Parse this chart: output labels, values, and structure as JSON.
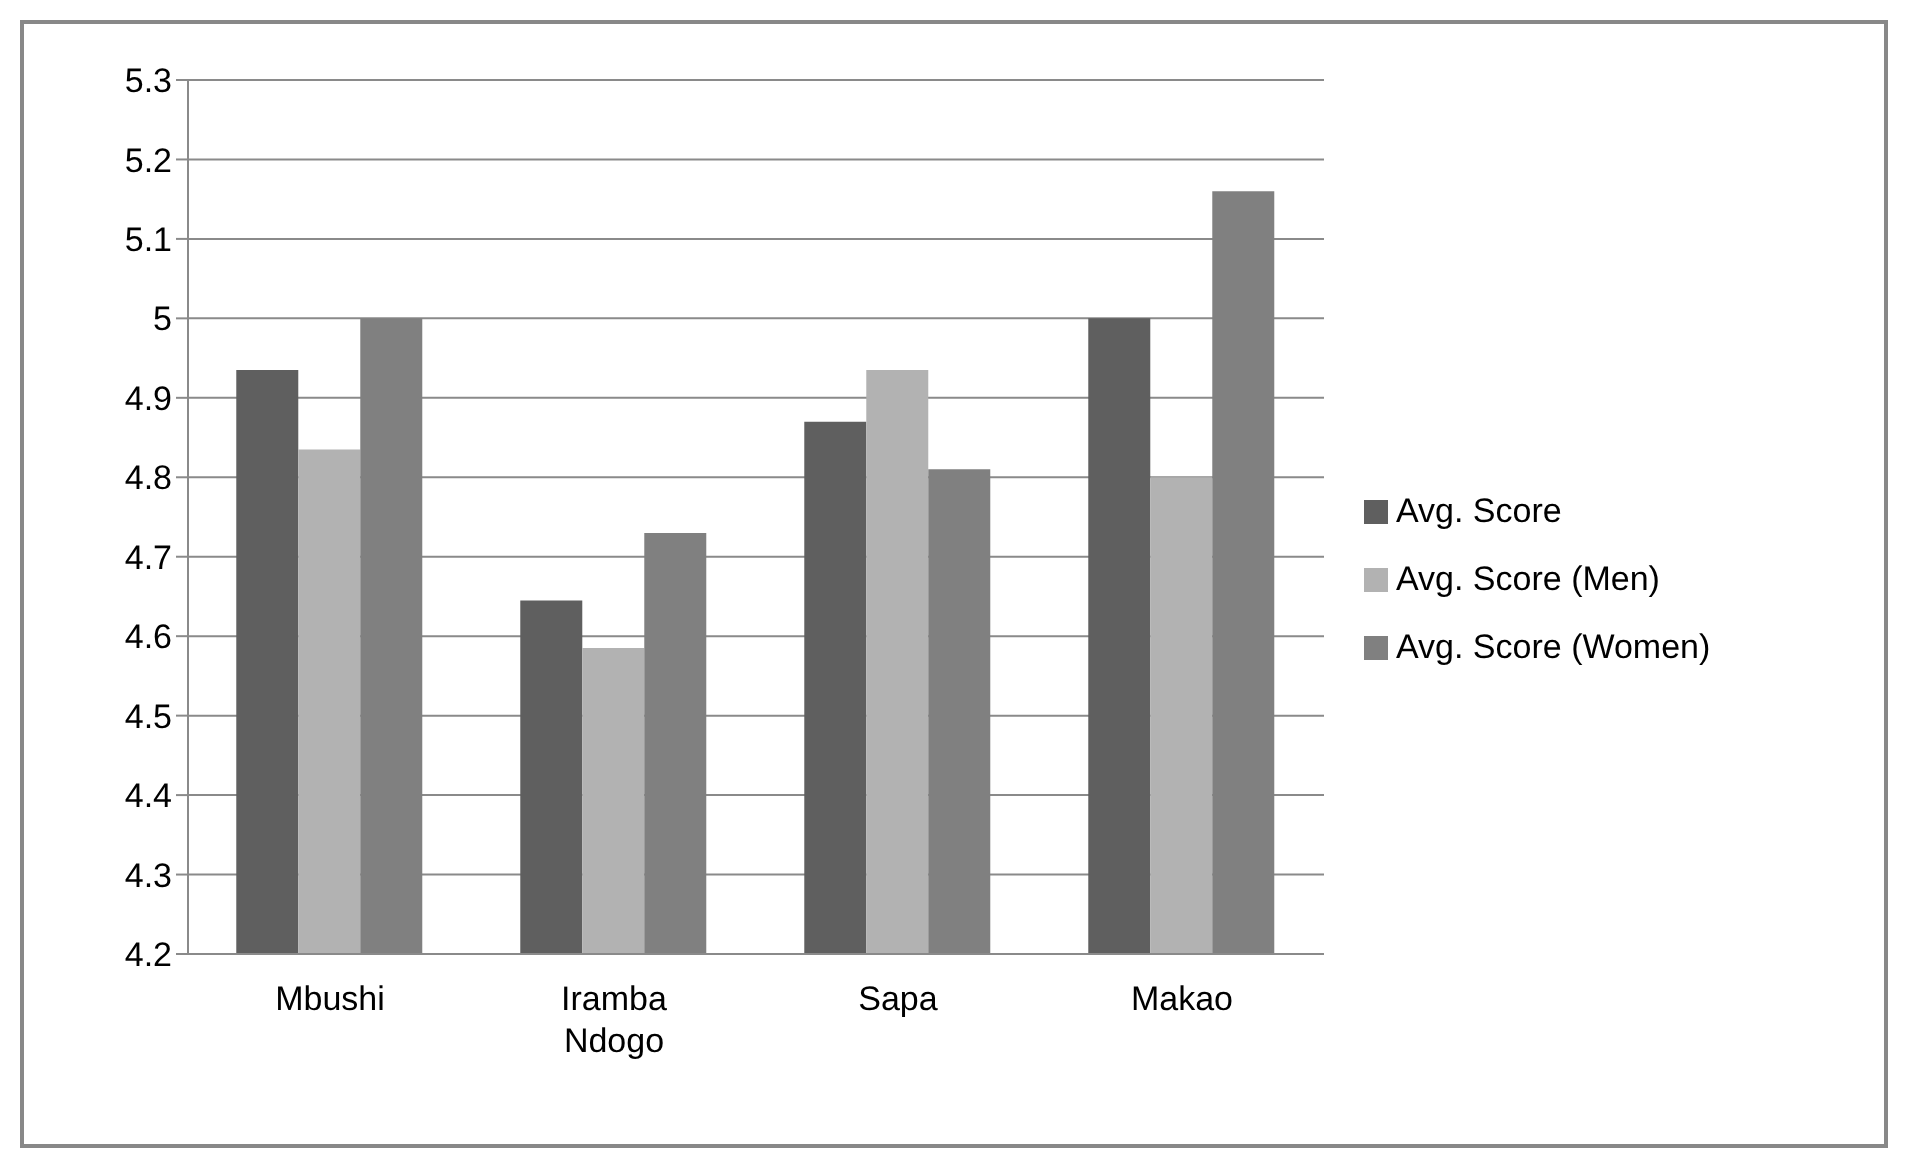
{
  "chart_data": {
    "type": "bar",
    "categories": [
      "Mbushi",
      "Iramba Ndogo",
      "Sapa",
      "Makao"
    ],
    "series": [
      {
        "name": "Avg. Score",
        "color": "#5f5f5f",
        "values": [
          4.935,
          4.645,
          4.87,
          5.0
        ]
      },
      {
        "name": "Avg. Score (Men)",
        "color": "#b2b2b2",
        "values": [
          4.835,
          4.585,
          4.935,
          4.8
        ]
      },
      {
        "name": "Avg. Score (Women)",
        "color": "#808080",
        "values": [
          5.0,
          4.73,
          4.81,
          5.16
        ]
      }
    ],
    "ylim": [
      4.2,
      5.3
    ],
    "yticks": [
      4.2,
      4.3,
      4.4,
      4.5,
      4.6,
      4.7,
      4.8,
      4.9,
      5,
      5.1,
      5.2,
      5.3
    ],
    "grid": "y",
    "legend": "right"
  }
}
